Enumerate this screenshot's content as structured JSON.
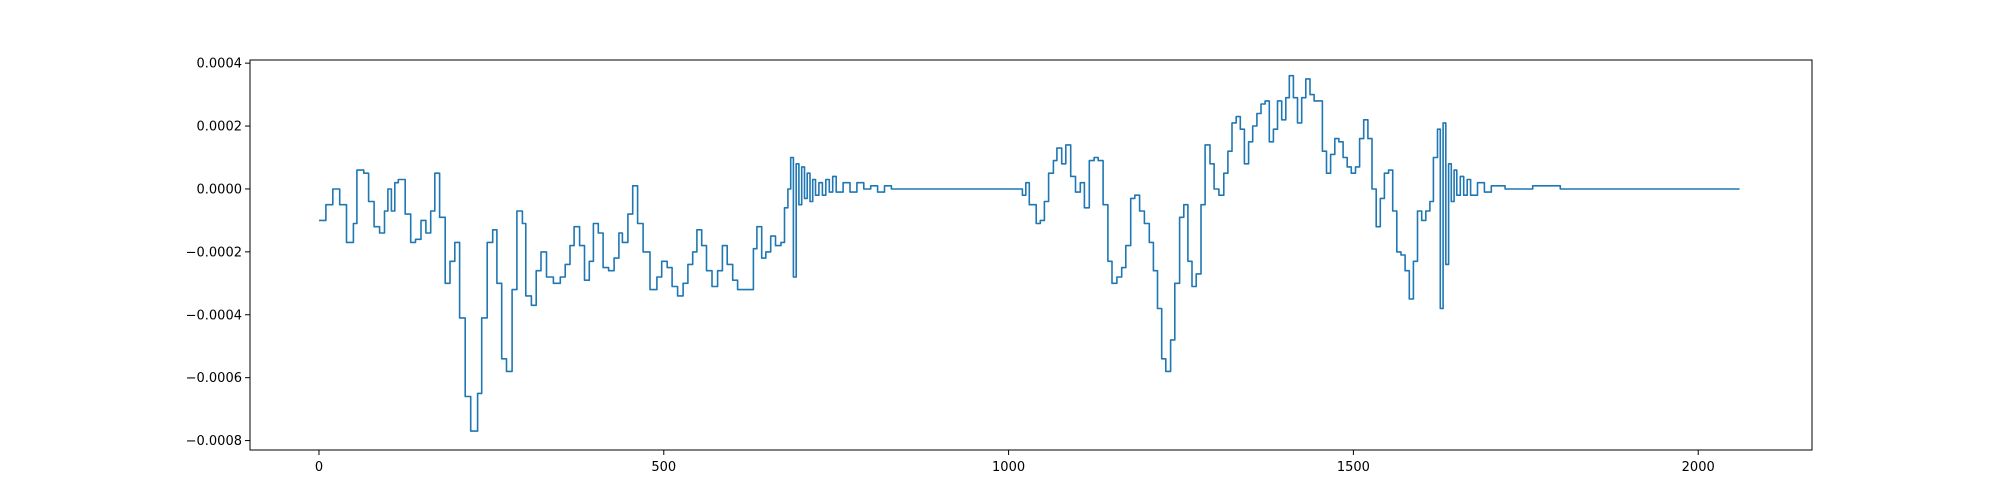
{
  "chart_data": {
    "type": "line",
    "title": "",
    "xlabel": "",
    "ylabel": "",
    "xlim": [
      -100,
      2165
    ],
    "ylim": [
      -0.00083,
      0.00041
    ],
    "x_ticks": [
      {
        "value": 0,
        "label": "0"
      },
      {
        "value": 500,
        "label": "500"
      },
      {
        "value": 1000,
        "label": "1000"
      },
      {
        "value": 1500,
        "label": "1500"
      },
      {
        "value": 2000,
        "label": "2000"
      }
    ],
    "y_ticks": [
      {
        "value": -0.0008,
        "label": "−0.0008"
      },
      {
        "value": -0.0006,
        "label": "−0.0006"
      },
      {
        "value": -0.0004,
        "label": "−0.0004"
      },
      {
        "value": -0.0002,
        "label": "−0.0002"
      },
      {
        "value": 0.0,
        "label": "0.0000"
      },
      {
        "value": 0.0002,
        "label": "0.0002"
      },
      {
        "value": 0.0004,
        "label": "0.0004"
      }
    ],
    "grid": false,
    "legend": "none",
    "series": [
      {
        "color": "#1f77b4",
        "step": true,
        "points": [
          [
            0,
            -0.0001
          ],
          [
            10,
            -5e-05
          ],
          [
            20,
            0.0
          ],
          [
            30,
            -5e-05
          ],
          [
            40,
            -0.00017
          ],
          [
            50,
            -0.00011
          ],
          [
            55,
            6e-05
          ],
          [
            65,
            5e-05
          ],
          [
            72,
            -4e-05
          ],
          [
            80,
            -0.00012
          ],
          [
            88,
            -0.00014
          ],
          [
            95,
            -7e-05
          ],
          [
            100,
            0.0
          ],
          [
            105,
            -7e-05
          ],
          [
            110,
            2e-05
          ],
          [
            115,
            3e-05
          ],
          [
            125,
            -8e-05
          ],
          [
            133,
            -0.00017
          ],
          [
            140,
            -0.00016
          ],
          [
            148,
            -0.0001
          ],
          [
            155,
            -0.00014
          ],
          [
            162,
            -7e-05
          ],
          [
            168,
            5e-05
          ],
          [
            175,
            -9e-05
          ],
          [
            183,
            -0.0003
          ],
          [
            190,
            -0.00023
          ],
          [
            197,
            -0.00017
          ],
          [
            204,
            -0.00041
          ],
          [
            212,
            -0.00066
          ],
          [
            220,
            -0.00077
          ],
          [
            230,
            -0.00065
          ],
          [
            236,
            -0.00041
          ],
          [
            244,
            -0.00017
          ],
          [
            252,
            -0.00013
          ],
          [
            258,
            -0.0003
          ],
          [
            265,
            -0.00054
          ],
          [
            272,
            -0.00058
          ],
          [
            280,
            -0.00032
          ],
          [
            287,
            -7e-05
          ],
          [
            295,
            -0.00011
          ],
          [
            300,
            -0.00034
          ],
          [
            308,
            -0.00037
          ],
          [
            315,
            -0.00026
          ],
          [
            322,
            -0.0002
          ],
          [
            330,
            -0.00028
          ],
          [
            340,
            -0.0003
          ],
          [
            350,
            -0.00028
          ],
          [
            357,
            -0.00024
          ],
          [
            364,
            -0.00018
          ],
          [
            370,
            -0.00012
          ],
          [
            378,
            -0.00018
          ],
          [
            385,
            -0.00029
          ],
          [
            392,
            -0.00023
          ],
          [
            398,
            -0.00011
          ],
          [
            405,
            -0.00014
          ],
          [
            412,
            -0.00025
          ],
          [
            420,
            -0.00026
          ],
          [
            428,
            -0.00022
          ],
          [
            435,
            -0.00014
          ],
          [
            440,
            -0.00017
          ],
          [
            448,
            -8e-05
          ],
          [
            455,
            1e-05
          ],
          [
            462,
            -0.00011
          ],
          [
            470,
            -0.0002
          ],
          [
            480,
            -0.00032
          ],
          [
            490,
            -0.00028
          ],
          [
            497,
            -0.00023
          ],
          [
            505,
            -0.00025
          ],
          [
            512,
            -0.00031
          ],
          [
            520,
            -0.00034
          ],
          [
            528,
            -0.0003
          ],
          [
            535,
            -0.00024
          ],
          [
            542,
            -0.0002
          ],
          [
            548,
            -0.00013
          ],
          [
            555,
            -0.00018
          ],
          [
            562,
            -0.00026
          ],
          [
            570,
            -0.00031
          ],
          [
            578,
            -0.00026
          ],
          [
            585,
            -0.00018
          ],
          [
            592,
            -0.00024
          ],
          [
            600,
            -0.00029
          ],
          [
            607,
            -0.00032
          ],
          [
            615,
            -0.00032
          ],
          [
            622,
            -0.00032
          ],
          [
            630,
            -0.00019
          ],
          [
            635,
            -0.00012
          ],
          [
            642,
            -0.00022
          ],
          [
            648,
            -0.0002
          ],
          [
            655,
            -0.00015
          ],
          [
            662,
            -0.00018
          ],
          [
            670,
            -0.00017
          ],
          [
            675,
            -6e-05
          ],
          [
            680,
            0.0
          ],
          [
            684,
            0.0001
          ],
          [
            688,
            -0.00028
          ],
          [
            692,
            8e-05
          ],
          [
            696,
            -5e-05
          ],
          [
            700,
            7e-05
          ],
          [
            704,
            -3e-05
          ],
          [
            708,
            5e-05
          ],
          [
            712,
            -4e-05
          ],
          [
            716,
            3e-05
          ],
          [
            720,
            -2e-05
          ],
          [
            725,
            2e-05
          ],
          [
            730,
            -2e-05
          ],
          [
            735,
            3e-05
          ],
          [
            740,
            -1e-05
          ],
          [
            745,
            4e-05
          ],
          [
            750,
            -1e-05
          ],
          [
            760,
            2e-05
          ],
          [
            770,
            -1e-05
          ],
          [
            780,
            2e-05
          ],
          [
            790,
            0.0
          ],
          [
            800,
            1e-05
          ],
          [
            810,
            -1e-05
          ],
          [
            820,
            1e-05
          ],
          [
            830,
            0.0
          ],
          [
            850,
            0.0
          ],
          [
            900,
            0.0
          ],
          [
            950,
            0.0
          ],
          [
            1000,
            0.0
          ],
          [
            1010,
            0.0
          ],
          [
            1020,
            -2e-05
          ],
          [
            1025,
            2e-05
          ],
          [
            1030,
            -5e-05
          ],
          [
            1040,
            -0.00011
          ],
          [
            1046,
            -0.0001
          ],
          [
            1052,
            -4e-05
          ],
          [
            1058,
            5e-05
          ],
          [
            1065,
            9e-05
          ],
          [
            1070,
            0.00013
          ],
          [
            1077,
            8e-05
          ],
          [
            1083,
            0.00014
          ],
          [
            1090,
            4e-05
          ],
          [
            1097,
            -1e-05
          ],
          [
            1104,
            2e-05
          ],
          [
            1110,
            -6e-05
          ],
          [
            1117,
            9e-05
          ],
          [
            1124,
            0.0001
          ],
          [
            1130,
            9e-05
          ],
          [
            1137,
            -5e-05
          ],
          [
            1144,
            -0.00023
          ],
          [
            1150,
            -0.0003
          ],
          [
            1157,
            -0.00028
          ],
          [
            1164,
            -0.00025
          ],
          [
            1170,
            -0.00018
          ],
          [
            1177,
            -3e-05
          ],
          [
            1183,
            -2e-05
          ],
          [
            1190,
            -7e-05
          ],
          [
            1197,
            -0.00011
          ],
          [
            1204,
            -0.00017
          ],
          [
            1210,
            -0.00026
          ],
          [
            1216,
            -0.00038
          ],
          [
            1222,
            -0.00054
          ],
          [
            1228,
            -0.00058
          ],
          [
            1235,
            -0.00048
          ],
          [
            1241,
            -0.0003
          ],
          [
            1248,
            -9e-05
          ],
          [
            1254,
            -5e-05
          ],
          [
            1260,
            -0.00023
          ],
          [
            1266,
            -0.00031
          ],
          [
            1272,
            -0.00027
          ],
          [
            1279,
            -5e-05
          ],
          [
            1285,
            0.00014
          ],
          [
            1292,
            8e-05
          ],
          [
            1298,
            0.0
          ],
          [
            1305,
            -2e-05
          ],
          [
            1312,
            5e-05
          ],
          [
            1318,
            0.00012
          ],
          [
            1324,
            0.00021
          ],
          [
            1330,
            0.00023
          ],
          [
            1336,
            0.00019
          ],
          [
            1342,
            8e-05
          ],
          [
            1348,
            0.00015
          ],
          [
            1354,
            0.0002
          ],
          [
            1360,
            0.00024
          ],
          [
            1366,
            0.00027
          ],
          [
            1372,
            0.00028
          ],
          [
            1378,
            0.00015
          ],
          [
            1384,
            0.00019
          ],
          [
            1390,
            0.00028
          ],
          [
            1396,
            0.00022
          ],
          [
            1402,
            0.00029
          ],
          [
            1407,
            0.00036
          ],
          [
            1413,
            0.00029
          ],
          [
            1419,
            0.00021
          ],
          [
            1425,
            0.00029
          ],
          [
            1431,
            0.00035
          ],
          [
            1437,
            0.0003
          ],
          [
            1443,
            0.00028
          ],
          [
            1449,
            0.00028
          ],
          [
            1455,
            0.00012
          ],
          [
            1461,
            5e-05
          ],
          [
            1467,
            0.00011
          ],
          [
            1473,
            0.00016
          ],
          [
            1479,
            0.00015
          ],
          [
            1485,
            0.0001
          ],
          [
            1491,
            7e-05
          ],
          [
            1497,
            5e-05
          ],
          [
            1503,
            7e-05
          ],
          [
            1509,
            0.00016
          ],
          [
            1515,
            0.00022
          ],
          [
            1521,
            0.00016
          ],
          [
            1527,
            0.0
          ],
          [
            1533,
            -0.00012
          ],
          [
            1539,
            -3e-05
          ],
          [
            1545,
            5e-05
          ],
          [
            1551,
            6e-05
          ],
          [
            1557,
            -7e-05
          ],
          [
            1563,
            -0.0002
          ],
          [
            1569,
            -0.00021
          ],
          [
            1575,
            -0.00026
          ],
          [
            1581,
            -0.00035
          ],
          [
            1587,
            -0.00023
          ],
          [
            1593,
            -7e-05
          ],
          [
            1599,
            -0.0001
          ],
          [
            1605,
            -7e-05
          ],
          [
            1611,
            -4e-05
          ],
          [
            1616,
            0.0001
          ],
          [
            1622,
            0.00019
          ],
          [
            1626,
            -0.00038
          ],
          [
            1630,
            0.00021
          ],
          [
            1634,
            -0.00024
          ],
          [
            1638,
            8e-05
          ],
          [
            1642,
            -4e-05
          ],
          [
            1646,
            6e-05
          ],
          [
            1650,
            -2e-05
          ],
          [
            1655,
            4e-05
          ],
          [
            1660,
            -2e-05
          ],
          [
            1665,
            3e-05
          ],
          [
            1670,
            -2e-05
          ],
          [
            1680,
            2e-05
          ],
          [
            1690,
            -1e-05
          ],
          [
            1700,
            1e-05
          ],
          [
            1720,
            0.0
          ],
          [
            1760,
            1e-05
          ],
          [
            1800,
            0.0
          ],
          [
            1850,
            0.0
          ],
          [
            1900,
            0.0
          ],
          [
            1950,
            0.0
          ],
          [
            2000,
            0.0
          ],
          [
            2060,
            0.0
          ]
        ]
      }
    ]
  }
}
